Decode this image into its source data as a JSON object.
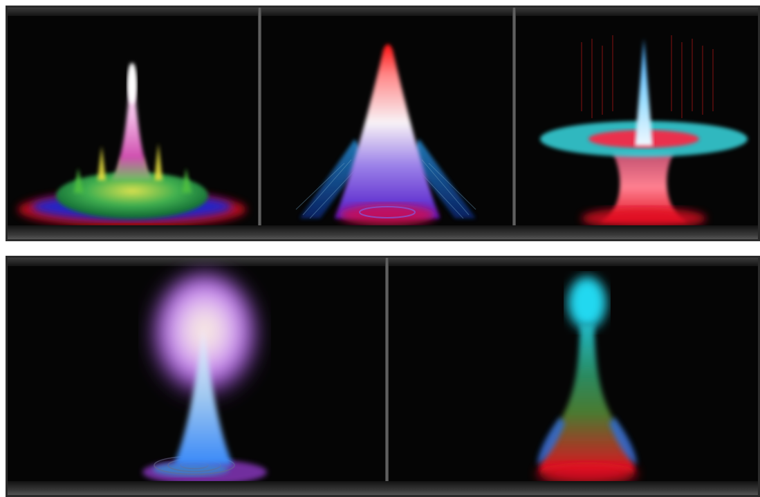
{
  "figure": {
    "rows": [
      {
        "panels": [
          {
            "id": "panel-1",
            "colors": [
              "#ffffff",
              "#e060c0",
              "#f0e040",
              "#30c040",
              "#2030e0",
              "#e01020"
            ]
          },
          {
            "id": "panel-2",
            "colors": [
              "#ff1010",
              "#ffffff",
              "#30a0ff",
              "#6020e0",
              "#e01060"
            ]
          },
          {
            "id": "panel-3",
            "colors": [
              "#40c0ff",
              "#40f0f0",
              "#ff2040",
              "#e01020"
            ]
          }
        ]
      },
      {
        "panels": [
          {
            "id": "panel-4",
            "colors": [
              "#c070ff",
              "#fff8d8",
              "#40a0ff",
              "#a040e0"
            ]
          },
          {
            "id": "panel-5",
            "colors": [
              "#20d8f0",
              "#30a040",
              "#e01020",
              "#2080ff"
            ]
          }
        ]
      }
    ]
  }
}
